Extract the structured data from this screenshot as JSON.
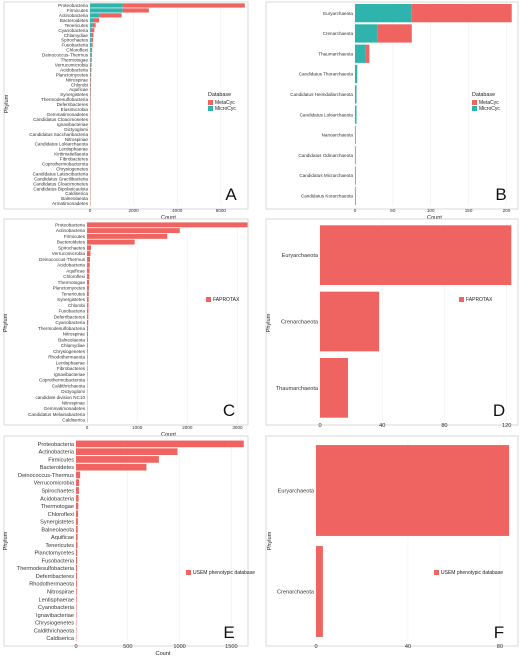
{
  "colors": {
    "metacyc": "#ef6461",
    "microcyc": "#2eb4ac"
  },
  "chart_data": [
    {
      "panel": "A",
      "type": "bar",
      "orientation": "horizontal",
      "stacked": true,
      "xlabel": "Count",
      "ylabel": "Phylum",
      "xlim": [
        0,
        7200
      ],
      "xticks": [
        0,
        2000,
        4000,
        6000
      ],
      "legend": {
        "title": "Database",
        "position": "right",
        "entries": [
          "MetaCyc",
          "MicroCyc"
        ]
      },
      "categories": [
        "Proteobacteria",
        "Firmicutes",
        "Actinobacteria",
        "Bacteroidetes",
        "Tenericutes",
        "Cyanobacteria",
        "Chlamydiae",
        "Spirochaetes",
        "Fusobacteria",
        "Chloroflexi",
        "Deinococcus-Thermus",
        "Thermotogae",
        "Verrucomicrobia",
        "Acidobacteria",
        "Planctomycetes",
        "Nitrospirae",
        "Chlorobi",
        "Aquificae",
        "Synergistetes",
        "Thermodesulfobacteria",
        "Deferribacteres",
        "Elusimicrobia",
        "Gemmatimonadetes",
        "Candidatus Cloacimonetes",
        "Ignavibacteriae",
        "Dictyoglomi",
        "Candidatus Saccharibacteria",
        "Nitrospinae",
        "Candidatus Lokiarchaeota",
        "Lentisphaerae",
        "Kiritimatiellaeota",
        "Fibrobacteres",
        "Coprothermobacterota",
        "Chrysiogenetes",
        "Candidatus Latescibacteria",
        "Candidatus Gracilibacteria",
        "Candidatus Cloacimonetes",
        "Candidatus Bipolaricaulota",
        "Caldiserica",
        "Balneolaeota",
        "Armatimonadetes"
      ],
      "series": [
        {
          "name": "MetaCyc",
          "values": [
            5600,
            1200,
            1000,
            260,
            140,
            110,
            90,
            80,
            70,
            60,
            55,
            50,
            45,
            40,
            35,
            32,
            30,
            28,
            26,
            24,
            22,
            20,
            18,
            16,
            15,
            14,
            13,
            12,
            11,
            10,
            9,
            9,
            8,
            8,
            7,
            7,
            6,
            6,
            5,
            5,
            4
          ]
        },
        {
          "name": "MicroCyc",
          "values": [
            1500,
            1500,
            450,
            160,
            120,
            90,
            70,
            60,
            50,
            40,
            35,
            30,
            28,
            24,
            20,
            18,
            16,
            15,
            14,
            12,
            10,
            9,
            8,
            8,
            7,
            6,
            6,
            5,
            5,
            4,
            4,
            4,
            3,
            3,
            3,
            3,
            2,
            2,
            2,
            2,
            2
          ]
        }
      ]
    },
    {
      "panel": "B",
      "type": "bar",
      "orientation": "horizontal",
      "stacked": true,
      "xlabel": "Count",
      "ylabel": "Phylum",
      "xlim": [
        0,
        210
      ],
      "xticks": [
        0,
        50,
        100,
        150,
        200
      ],
      "legend": {
        "title": "Database",
        "position": "right",
        "entries": [
          "MetaCyc",
          "MicroCyc"
        ]
      },
      "categories": [
        "Euryarchaeota",
        "Crenarchaeota",
        "Thaumarchaeota",
        "Candidatus Thorarchaeota",
        "Candidatus Heimdallarchaeota",
        "Candidatus Lokiarchaeota",
        "Nanoarchaeota",
        "Candidatus Odinarchaeota",
        "Candidatus Micrarchaeota",
        "Candidatus Korarchaeota"
      ],
      "series": [
        {
          "name": "MetaCyc",
          "values": [
            132,
            45,
            5,
            0,
            0,
            0,
            0,
            0,
            0,
            0
          ]
        },
        {
          "name": "MicroCyc",
          "values": [
            75,
            30,
            14,
            3,
            2,
            2,
            1,
            1,
            1,
            1
          ]
        }
      ]
    },
    {
      "panel": "C",
      "type": "bar",
      "orientation": "horizontal",
      "xlabel": "Count",
      "ylabel": "Phylum",
      "xlim": [
        0,
        3250
      ],
      "xticks": [
        0,
        1000,
        2000,
        3000
      ],
      "legend": {
        "title": "",
        "position": "right",
        "entries": [
          "FAPROTAX"
        ]
      },
      "categories": [
        "Proteobacteria",
        "Actinobacteria",
        "Firmicutes",
        "Bacteroidetes",
        "Spirochaetes",
        "Verrucomicrobia",
        "Deinococcus-Thermus",
        "Acidobacteria",
        "Aquificae",
        "Chloroflexi",
        "Thermotogae",
        "Planctomycetes",
        "Tenericutes",
        "Synergistetes",
        "Chlorobi",
        "Fusobacteria",
        "Deferribacteres",
        "Cyanobacteria",
        "Thermodesulfobacteria",
        "Nitrospirae",
        "Balneolaeota",
        "Chlamydiae",
        "Chrysiogenetes",
        "Rhodothermaeota",
        "Lentisphaerae",
        "Fibrobacteres",
        "Ignavibacteriae",
        "Coprothermobacterota",
        "Caldithrichaeota",
        "Dictyoglomi",
        "candidate division NC10",
        "Nitrospinae",
        "Gemmatimonadetes",
        "Candidatus Melainabacteria",
        "Caldiserica"
      ],
      "values": [
        3200,
        1850,
        1600,
        950,
        80,
        70,
        60,
        55,
        50,
        45,
        40,
        38,
        35,
        32,
        30,
        28,
        26,
        24,
        22,
        20,
        18,
        16,
        15,
        14,
        13,
        12,
        11,
        10,
        9,
        8,
        7,
        6,
        5,
        5,
        4
      ]
    },
    {
      "panel": "D",
      "type": "bar",
      "orientation": "horizontal",
      "xlabel": "",
      "ylabel": "Phylum",
      "xlim": [
        0,
        126
      ],
      "xticks": [
        0,
        40,
        80,
        120
      ],
      "legend": {
        "title": "",
        "position": "right",
        "entries": [
          "FAPROTAX"
        ]
      },
      "categories": [
        "Euryarchaeota",
        "Crenarchaeota",
        "Thaumarchaeota"
      ],
      "values": [
        123,
        38,
        18
      ]
    },
    {
      "panel": "E",
      "type": "bar",
      "orientation": "horizontal",
      "xlabel": "Count",
      "ylabel": "Phylum",
      "xlim": [
        0,
        1680
      ],
      "xticks": [
        0,
        500,
        1000,
        1500
      ],
      "legend": {
        "title": "",
        "position": "right",
        "entries": [
          "USEM phenotypic database"
        ]
      },
      "categories": [
        "Proteobacteria",
        "Actinobacteria",
        "Firmicutes",
        "Bacteroidetes",
        "Deinococcus-Thermus",
        "Verrucomicrobia",
        "Spirochaetes",
        "Acidobacteria",
        "Thermotogae",
        "Chloroflexi",
        "Synergistetes",
        "Balneolaeota",
        "Aquificae",
        "Tenericutes",
        "Planctomycetes",
        "Fusobacteria",
        "Thermodesulfobacteria",
        "Deferribacteres",
        "Rhodothermaeota",
        "Nitrospirae",
        "Lentisphaerae",
        "Cyanobacteria",
        "Ignavibacteriae",
        "Chrysiogenetes",
        "Caldithrichaeota",
        "Caldiserica"
      ],
      "values": [
        1620,
        980,
        800,
        680,
        40,
        30,
        28,
        25,
        22,
        20,
        18,
        16,
        15,
        14,
        12,
        11,
        10,
        9,
        8,
        7,
        6,
        5,
        5,
        4,
        3,
        3
      ]
    },
    {
      "panel": "F",
      "type": "bar",
      "orientation": "horizontal",
      "xlabel": "",
      "ylabel": "Phylum",
      "xlim": [
        0,
        87
      ],
      "xticks": [
        0,
        40,
        80
      ],
      "legend": {
        "title": "",
        "position": "right",
        "entries": [
          "USEM phenotypic database"
        ]
      },
      "categories": [
        "Euryarchaeota",
        "Crenarchaeota"
      ],
      "values": [
        84,
        3
      ]
    }
  ]
}
